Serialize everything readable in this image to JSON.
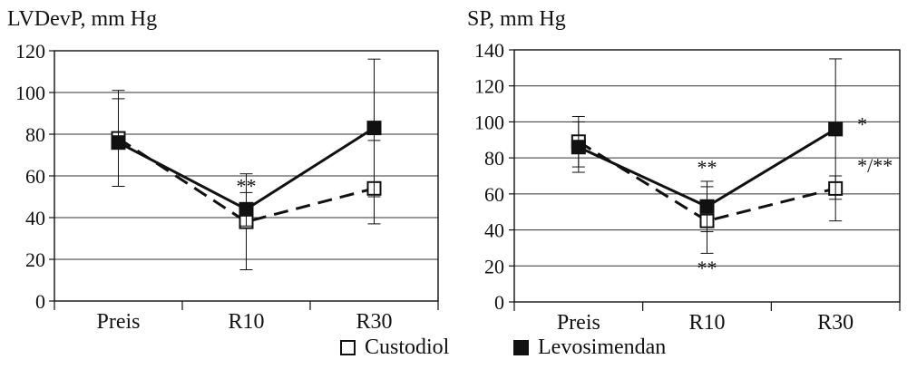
{
  "chart_data": [
    {
      "type": "line",
      "title": "LVDevP, mm Hg",
      "categories": [
        "Preis",
        "R10",
        "R30"
      ],
      "ylim": [
        0,
        120
      ],
      "yticks": [
        0,
        20,
        40,
        60,
        80,
        100,
        120
      ],
      "grid": true,
      "series": [
        {
          "name": "Custodiol",
          "values": [
            78,
            38,
            54
          ],
          "err_high": [
            101,
            61,
            77
          ],
          "err_low": [
            55,
            15,
            37
          ]
        },
        {
          "name": "Levosimendan",
          "values": [
            76,
            44,
            83
          ],
          "err_high": [
            97,
            52,
            116
          ],
          "err_low": [
            55,
            36,
            50
          ]
        }
      ],
      "annotations": [
        {
          "text": "**",
          "category": "R10",
          "y": 52
        }
      ]
    },
    {
      "type": "line",
      "title": "SP, mm Hg",
      "categories": [
        "Preis",
        "R10",
        "R30"
      ],
      "ylim": [
        0,
        140
      ],
      "yticks": [
        0,
        20,
        40,
        60,
        80,
        100,
        120,
        140
      ],
      "grid": true,
      "series": [
        {
          "name": "Custodiol",
          "values": [
            89,
            45,
            63
          ],
          "err_high": [
            103,
            64,
            70
          ],
          "err_low": [
            75,
            27,
            45
          ]
        },
        {
          "name": "Levosimendan",
          "values": [
            86,
            53,
            96
          ],
          "err_high": [
            100,
            67,
            135
          ],
          "err_low": [
            72,
            39,
            57
          ]
        }
      ],
      "annotations": [
        {
          "text": "**",
          "category": "R10",
          "y": 71
        },
        {
          "text": "**",
          "category": "R10",
          "y": 15
        },
        {
          "text": "*",
          "category": "R30",
          "y": 95
        },
        {
          "text": "*/**",
          "category": "R30",
          "y": 72
        }
      ]
    }
  ],
  "legend": {
    "custodiol": "Custodiol",
    "levosimendan": "Levosimendan"
  }
}
